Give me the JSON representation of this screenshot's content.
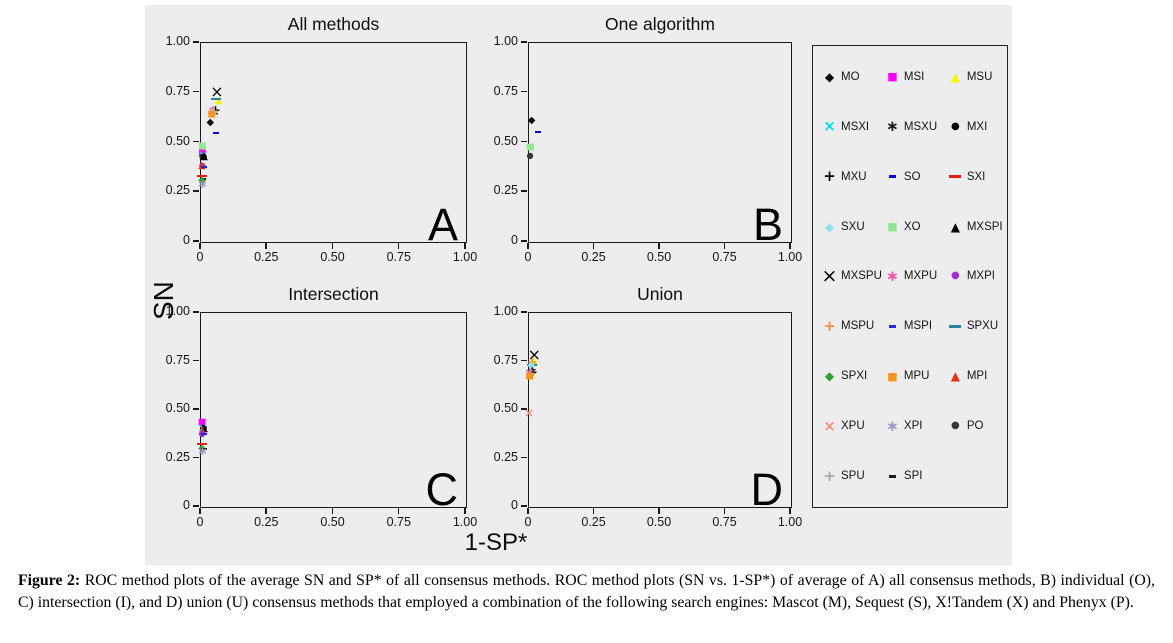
{
  "figure": {
    "ylabel": "SN",
    "xlabel": "1-SP*",
    "caption_prefix": "Figure 2:",
    "caption_body": " ROC method plots of the average SN and SP* of all consensus methods.  ROC method plots (SN vs. 1-SP*) of average of A) all consensus methods, B) individual (O), C) intersection (I), and D) union (U) consensus methods that employed a combination of the following search engines: Mascot (M), Sequest (S), X!Tandem (X) and Phenyx (P)."
  },
  "axes": {
    "xlim": [
      0,
      1
    ],
    "ylim": [
      0,
      1
    ],
    "x_ticks": [
      {
        "v": 0,
        "label": "0"
      },
      {
        "v": 0.25,
        "label": "0.25"
      },
      {
        "v": 0.5,
        "label": "0.50"
      },
      {
        "v": 0.75,
        "label": "0.75"
      },
      {
        "v": 1.0,
        "label": "1.00"
      }
    ],
    "y_ticks": [
      {
        "v": 1.0,
        "label": "1.00"
      },
      {
        "v": 0.75,
        "label": "0.75"
      },
      {
        "v": 0.5,
        "label": "0.50"
      },
      {
        "v": 0.25,
        "label": "0.25"
      },
      {
        "v": 0,
        "label": "0"
      }
    ],
    "grid": false
  },
  "legend": {
    "position": "right",
    "items": [
      {
        "id": "MO",
        "label": "MO",
        "marker": "diamond",
        "color": "#000000"
      },
      {
        "id": "MSI",
        "label": "MSI",
        "marker": "square",
        "color": "#ff00ff"
      },
      {
        "id": "MSU",
        "label": "MSU",
        "marker": "triangle",
        "color": "#f5f500"
      },
      {
        "id": "MSXI",
        "label": "MSXI",
        "marker": "x",
        "color": "#00dde8"
      },
      {
        "id": "MSXU",
        "label": "MSXU",
        "marker": "asterisk",
        "color": "#1a1a1a"
      },
      {
        "id": "MXI",
        "label": "MXI",
        "marker": "circle",
        "color": "#000000"
      },
      {
        "id": "MXU",
        "label": "MXU",
        "marker": "plus",
        "color": "#000000"
      },
      {
        "id": "SO",
        "label": "SO",
        "marker": "dash",
        "color": "#0000ee"
      },
      {
        "id": "SXI",
        "label": "SXI",
        "marker": "dash-long",
        "color": "#e81e10"
      },
      {
        "id": "SXU",
        "label": "SXU",
        "marker": "diamond",
        "color": "#8fe3ec"
      },
      {
        "id": "XO",
        "label": "XO",
        "marker": "square",
        "color": "#92e692"
      },
      {
        "id": "MXSPI",
        "label": "MXSPI",
        "marker": "triangle",
        "color": "#000000"
      },
      {
        "id": "MXSPU",
        "label": "MXSPU",
        "marker": "X",
        "color": "#000000"
      },
      {
        "id": "MXPU",
        "label": "MXPU",
        "marker": "asterisk",
        "color": "#f050a8"
      },
      {
        "id": "MXPI",
        "label": "MXPI",
        "marker": "circle",
        "color": "#9b30d0"
      },
      {
        "id": "MSPU",
        "label": "MSPU",
        "marker": "plus",
        "color": "#f09048"
      },
      {
        "id": "MSPI",
        "label": "MSPI",
        "marker": "dash",
        "color": "#2824e0"
      },
      {
        "id": "SPXU",
        "label": "SPXU",
        "marker": "dash-long",
        "color": "#2f7f9f"
      },
      {
        "id": "SPXI",
        "label": "SPXI",
        "marker": "diamond",
        "color": "#2f9e2f"
      },
      {
        "id": "MPU",
        "label": "MPU",
        "marker": "square",
        "color": "#f49520"
      },
      {
        "id": "MPI",
        "label": "MPI",
        "marker": "triangle",
        "color": "#e83010"
      },
      {
        "id": "XPU",
        "label": "XPU",
        "marker": "x",
        "color": "#f2907a"
      },
      {
        "id": "XPI",
        "label": "XPI",
        "marker": "asterisk",
        "color": "#9b98c8"
      },
      {
        "id": "PO",
        "label": "PO",
        "marker": "circle",
        "color": "#383838"
      },
      {
        "id": "SPU",
        "label": "SPU",
        "marker": "plus",
        "color": "#a8a8a8"
      },
      {
        "id": "SPI",
        "label": "SPI",
        "marker": "dash",
        "color": "#1a1a1a"
      }
    ]
  },
  "chart_data": [
    {
      "type": "scatter",
      "title": "All methods",
      "corner": "A",
      "points": [
        {
          "series": "MXSPU",
          "x": 0.06,
          "y": 0.75
        },
        {
          "series": "MSU",
          "x": 0.065,
          "y": 0.71
        },
        {
          "series": "SPXU",
          "x": 0.055,
          "y": 0.72
        },
        {
          "series": "MXPU",
          "x": 0.045,
          "y": 0.665
        },
        {
          "series": "MXU",
          "x": 0.055,
          "y": 0.665
        },
        {
          "series": "MSXU",
          "x": 0.05,
          "y": 0.655
        },
        {
          "series": "SPU",
          "x": 0.05,
          "y": 0.66
        },
        {
          "series": "SXU",
          "x": 0.045,
          "y": 0.65
        },
        {
          "series": "MSPU",
          "x": 0.04,
          "y": 0.655
        },
        {
          "series": "MPU",
          "x": 0.04,
          "y": 0.64
        },
        {
          "series": "MO",
          "x": 0.035,
          "y": 0.6
        },
        {
          "series": "SO",
          "x": 0.055,
          "y": 0.55
        },
        {
          "series": "XPU",
          "x": 0.005,
          "y": 0.48
        },
        {
          "series": "XO",
          "x": 0.005,
          "y": 0.475
        },
        {
          "series": "MSI",
          "x": 0.005,
          "y": 0.44
        },
        {
          "series": "MSXI",
          "x": 0.008,
          "y": 0.435
        },
        {
          "series": "PO",
          "x": 0.006,
          "y": 0.43
        },
        {
          "series": "MXI",
          "x": 0.01,
          "y": 0.43
        },
        {
          "series": "MXSPI",
          "x": 0.012,
          "y": 0.425
        },
        {
          "series": "MXPI",
          "x": 0.005,
          "y": 0.385
        },
        {
          "series": "MPI",
          "x": 0.004,
          "y": 0.38
        },
        {
          "series": "MSPI",
          "x": 0.01,
          "y": 0.375
        },
        {
          "series": "SXI",
          "x": 0.005,
          "y": 0.33
        },
        {
          "series": "SPI",
          "x": 0.008,
          "y": 0.315
        },
        {
          "series": "SPXI",
          "x": 0.004,
          "y": 0.305
        },
        {
          "series": "XPI",
          "x": 0.006,
          "y": 0.29
        }
      ]
    },
    {
      "type": "scatter",
      "title": "One algorithm",
      "corner": "B",
      "points": [
        {
          "series": "MO",
          "x": 0.01,
          "y": 0.61
        },
        {
          "series": "SO",
          "x": 0.035,
          "y": 0.555
        },
        {
          "series": "XO",
          "x": 0.005,
          "y": 0.47
        },
        {
          "series": "PO",
          "x": 0.004,
          "y": 0.435
        }
      ]
    },
    {
      "type": "scatter",
      "title": "Intersection",
      "corner": "C",
      "points": [
        {
          "series": "MSI",
          "x": 0.004,
          "y": 0.435
        },
        {
          "series": "MXI",
          "x": 0.01,
          "y": 0.41
        },
        {
          "series": "MSXI",
          "x": 0.006,
          "y": 0.405
        },
        {
          "series": "MXSPI",
          "x": 0.012,
          "y": 0.4
        },
        {
          "series": "MPI",
          "x": 0.005,
          "y": 0.39
        },
        {
          "series": "MXPI",
          "x": 0.004,
          "y": 0.38
        },
        {
          "series": "MSPI",
          "x": 0.012,
          "y": 0.375
        },
        {
          "series": "SXI",
          "x": 0.005,
          "y": 0.325
        },
        {
          "series": "SPXI",
          "x": 0.004,
          "y": 0.3
        },
        {
          "series": "SPI",
          "x": 0.01,
          "y": 0.3
        },
        {
          "series": "XPI",
          "x": 0.006,
          "y": 0.29
        }
      ]
    },
    {
      "type": "scatter",
      "title": "Union",
      "corner": "D",
      "points": [
        {
          "series": "MXSPU",
          "x": 0.02,
          "y": 0.78
        },
        {
          "series": "MSU",
          "x": 0.018,
          "y": 0.755
        },
        {
          "series": "MSPU",
          "x": 0.012,
          "y": 0.75
        },
        {
          "series": "SPXU",
          "x": 0.01,
          "y": 0.73
        },
        {
          "series": "SXU",
          "x": 0.008,
          "y": 0.725
        },
        {
          "series": "MSXU",
          "x": 0.012,
          "y": 0.7
        },
        {
          "series": "MXU",
          "x": 0.014,
          "y": 0.695
        },
        {
          "series": "MXPU",
          "x": 0.002,
          "y": 0.695
        },
        {
          "series": "SPU",
          "x": 0.006,
          "y": 0.69
        },
        {
          "series": "MPU",
          "x": 0.002,
          "y": 0.67
        },
        {
          "series": "XPU",
          "x": 0.0,
          "y": 0.485
        }
      ]
    }
  ]
}
